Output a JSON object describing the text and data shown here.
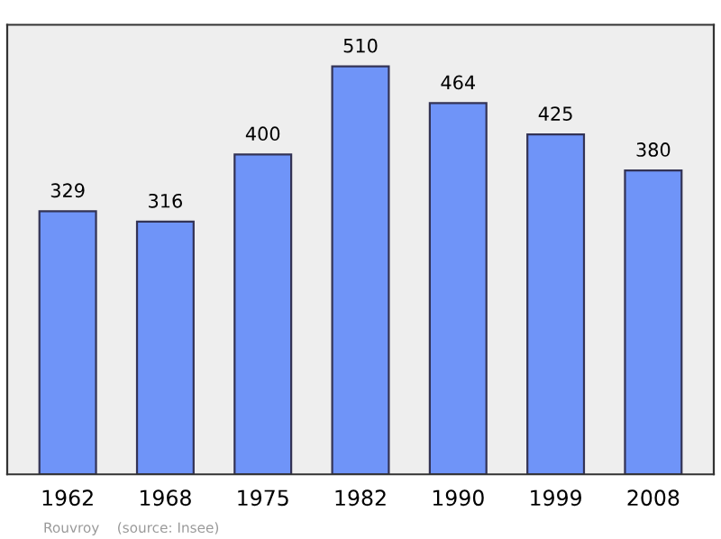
{
  "chart_data": {
    "type": "bar",
    "categories": [
      "1962",
      "1968",
      "1975",
      "1982",
      "1990",
      "1999",
      "2008"
    ],
    "values": [
      329,
      316,
      400,
      510,
      464,
      425,
      380
    ],
    "color": "#6f94f8",
    "ylim": [
      0,
      562
    ],
    "tick_labels": "x",
    "data_labels": true,
    "grid": false,
    "annotations": [
      "Rouvroy    (source: Insee)"
    ]
  }
}
